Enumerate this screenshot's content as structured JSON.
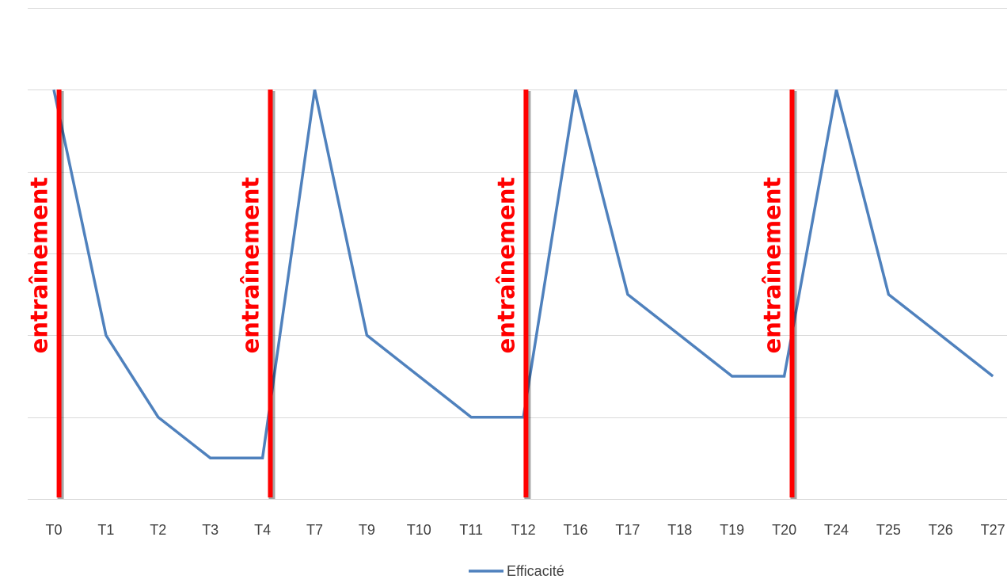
{
  "chart_data": {
    "type": "line",
    "title": "",
    "xlabel": "",
    "ylabel": "",
    "ylim": [
      0,
      6
    ],
    "grid": true,
    "y_ticks": [
      0,
      1,
      2,
      3,
      4,
      5,
      6
    ],
    "y_tick_labels_visible": false,
    "categories": [
      "T0",
      "T1",
      "T2",
      "T3",
      "T4",
      "T7",
      "T9",
      "T10",
      "T11",
      "T12",
      "T16",
      "T17",
      "T18",
      "T19",
      "T20",
      "T24",
      "T25",
      "T26",
      "T27"
    ],
    "series": [
      {
        "name": "Efficacité",
        "color": "#4f81bd",
        "values": [
          5,
          2,
          1,
          0.5,
          0.5,
          5,
          2,
          1.5,
          1,
          1,
          5,
          2.5,
          2,
          1.5,
          1.5,
          5,
          2.5,
          2,
          1.5
        ]
      }
    ],
    "legend": {
      "position": "bottom",
      "entries": [
        "Efficacité"
      ]
    },
    "annotations": {
      "color": "#ff0000",
      "label": "entraînement",
      "positions": [
        0.1,
        4.15,
        9.05,
        14.15
      ]
    }
  }
}
